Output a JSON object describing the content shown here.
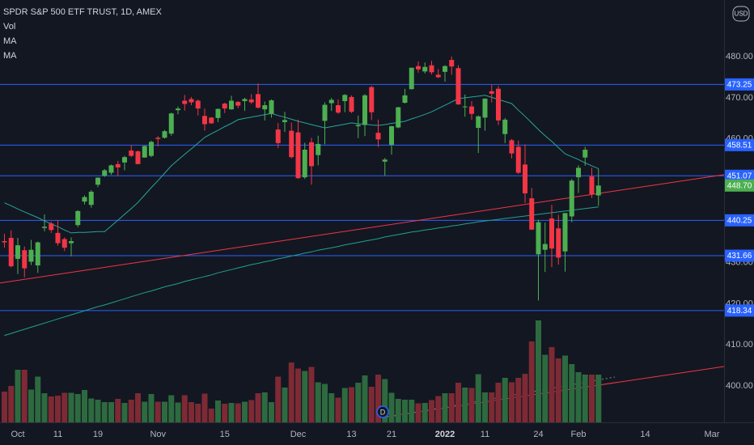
{
  "chart_data": {
    "type": "candlestick",
    "title": "SPDR S&P 500 ETF TRUST, 1D, AMEX",
    "indicators": [
      "Vol",
      "MA",
      "MA"
    ],
    "currency": "USD",
    "marker": "D",
    "categories": [
      null,
      null,
      "Oct",
      null,
      null,
      null,
      null,
      null,
      "11",
      null,
      null,
      null,
      null,
      null,
      "19",
      null,
      null,
      null,
      null,
      null,
      null,
      null,
      null,
      "Nov",
      null,
      null,
      null,
      null,
      null,
      null,
      null,
      null,
      null,
      "15",
      null,
      null,
      null,
      null,
      null,
      null,
      null,
      null,
      null,
      null,
      "Dec",
      null,
      null,
      null,
      null,
      null,
      null,
      null,
      "13",
      null,
      null,
      null,
      null,
      null,
      "21",
      null,
      null,
      null,
      null,
      null,
      null,
      null,
      "2022",
      null,
      null,
      null,
      null,
      null,
      "11",
      null,
      null,
      null,
      null,
      null,
      null,
      null,
      "24",
      null,
      null,
      null,
      null,
      null,
      "Feb",
      null,
      null,
      null,
      null,
      null,
      null,
      null,
      null,
      null,
      "14",
      null,
      null,
      null,
      null,
      null,
      null,
      null,
      null,
      null,
      "Mar"
    ],
    "open": [
      435.2,
      436.0,
      430.9,
      433.0,
      430.2,
      429.3,
      438.4,
      439.5,
      437.2,
      435.7,
      434.7,
      439.1,
      444.8,
      444.0,
      448.9,
      451.1,
      451.8,
      453.9,
      454.3,
      457.2,
      457.0,
      455.5,
      455.9,
      460.3,
      460.3,
      461.3,
      467.0,
      469.3,
      469.7,
      469.3,
      465.6,
      465.2,
      465.1,
      468.6,
      467.2,
      469.0,
      469.2,
      469.6,
      470.9,
      467.2,
      466.1,
      462.3,
      464.1,
      462.0,
      461.6,
      450.7,
      459.2,
      456.1,
      464.4,
      468.7,
      468.2,
      469.2,
      470.2,
      463.1,
      463.4,
      472.6,
      461.5,
      454.5,
      458.6,
      462.8,
      468.8,
      472.1,
      477.7,
      476.4,
      477.9,
      475.6,
      476.3,
      479.2,
      477.2,
      467.9,
      467.9,
      462.7,
      465.2,
      471.6,
      472.2,
      461.2,
      459.7,
      458.1,
      453.8,
      445.6,
      432.0,
      433.1,
      440.7,
      438.3,
      432.7,
      441.2,
      450.7,
      455.5,
      450.9,
      446.3,
      null,
      null,
      null,
      null,
      null,
      null,
      null,
      null,
      null,
      null,
      null,
      null,
      null,
      null,
      null,
      null,
      null
    ],
    "high": [
      437.0,
      437.8,
      436.0,
      433.9,
      435.5,
      435.1,
      441.7,
      439.9,
      440.3,
      436.1,
      436.1,
      442.7,
      446.3,
      447.6,
      450.7,
      452.7,
      453.8,
      454.7,
      455.9,
      458.5,
      457.2,
      458.4,
      459.6,
      460.7,
      462.2,
      466.4,
      467.9,
      470.7,
      470.2,
      469.6,
      467.4,
      465.3,
      467.4,
      468.8,
      470.5,
      469.2,
      470.0,
      470.9,
      473.5,
      469.1,
      469.6,
      463.9,
      466.6,
      464.0,
      464.7,
      459.1,
      460.3,
      460.8,
      468.9,
      470.0,
      469.6,
      470.9,
      470.6,
      465.7,
      470.9,
      472.9,
      464.7,
      455.4,
      463.2,
      467.8,
      472.2,
      477.3,
      478.8,
      478.6,
      479.0,
      477.0,
      477.9,
      480.0,
      477.9,
      470.8,
      469.2,
      465.7,
      469.9,
      473.2,
      472.9,
      465.1,
      460.0,
      459.6,
      458.7,
      448.1,
      440.4,
      439.7,
      444.0,
      441.6,
      442.0,
      450.3,
      453.6,
      458.1,
      453.0,
      452.8,
      null,
      null,
      null,
      null,
      null,
      null,
      null,
      null,
      null,
      null,
      null,
      null,
      null,
      null,
      null,
      null,
      null
    ],
    "low": [
      433.6,
      428.8,
      427.2,
      426.4,
      429.4,
      427.5,
      437.6,
      437.2,
      434.1,
      432.8,
      431.5,
      438.6,
      444.1,
      443.3,
      448.3,
      450.8,
      451.3,
      451.1,
      452.4,
      455.6,
      453.9,
      455.5,
      455.6,
      458.2,
      460.1,
      460.8,
      466.0,
      466.9,
      468.2,
      465.7,
      462.0,
      463.7,
      464.1,
      466.3,
      467.1,
      467.5,
      466.8,
      468.5,
      467.4,
      464.5,
      465.2,
      457.8,
      461.7,
      455.3,
      450.3,
      450.3,
      448.9,
      453.6,
      458.7,
      466.8,
      466.1,
      466.5,
      466.3,
      460.2,
      460.7,
      464.6,
      458.1,
      451.1,
      456.2,
      462.6,
      468.6,
      472.0,
      476.1,
      475.9,
      475.7,
      474.8,
      473.9,
      475.6,
      468.3,
      465.4,
      464.7,
      456.6,
      462.0,
      468.9,
      463.4,
      459.0,
      455.3,
      451.5,
      444.5,
      437.9,
      420.8,
      427.7,
      428.9,
      429.5,
      427.8,
      439.8,
      446.9,
      453.5,
      445.7,
      443.8,
      null,
      null,
      null,
      null,
      null,
      null,
      null,
      null,
      null,
      null,
      null,
      null,
      null,
      null,
      null,
      null,
      null
    ],
    "close": [
      434.9,
      429.1,
      434.2,
      428.6,
      433.1,
      434.9,
      438.7,
      437.9,
      434.7,
      433.6,
      435.2,
      442.5,
      445.9,
      447.2,
      450.6,
      452.4,
      453.6,
      453.1,
      455.6,
      455.9,
      453.9,
      458.3,
      459.3,
      460.0,
      461.9,
      466.2,
      467.4,
      468.5,
      468.9,
      467.4,
      463.6,
      463.8,
      467.3,
      467.4,
      469.3,
      468.1,
      469.7,
      468.9,
      467.6,
      468.2,
      469.4,
      459.0,
      464.6,
      455.6,
      450.5,
      457.4,
      453.4,
      458.8,
      468.3,
      469.5,
      466.4,
      470.7,
      466.6,
      463.4,
      470.6,
      466.5,
      459.9,
      455.0,
      463.1,
      467.7,
      470.6,
      477.3,
      476.9,
      477.5,
      476.2,
      475.0,
      477.7,
      477.6,
      468.4,
      467.9,
      466.1,
      465.5,
      469.8,
      471.0,
      464.5,
      464.7,
      456.5,
      451.8,
      446.8,
      438.0,
      439.8,
      434.5,
      433.4,
      431.2,
      442.0,
      449.9,
      453.0,
      457.4,
      446.6,
      448.7,
      null,
      null,
      null,
      null,
      null,
      null,
      null,
      null,
      null,
      null,
      null,
      null,
      null,
      null,
      null,
      null,
      null
    ],
    "volume": [
      76,
      90,
      130,
      130,
      81,
      113,
      72,
      64,
      66,
      73,
      73,
      70,
      80,
      59,
      56,
      50,
      50,
      58,
      48,
      56,
      72,
      51,
      70,
      51,
      51,
      67,
      49,
      67,
      50,
      46,
      71,
      34,
      54,
      46,
      48,
      47,
      51,
      55,
      72,
      74,
      50,
      113,
      86,
      148,
      133,
      127,
      137,
      99,
      95,
      72,
      61,
      85,
      87,
      98,
      116,
      88,
      118,
      107,
      73,
      58,
      56,
      56,
      47,
      48,
      55,
      65,
      72,
      72,
      98,
      86,
      85,
      119,
      74,
      74,
      98,
      110,
      99,
      110,
      120,
      200,
      252,
      167,
      186,
      158,
      165,
      144,
      124,
      118,
      118,
      118,
      null,
      null,
      null,
      null,
      null,
      null,
      null,
      null,
      null,
      null,
      null,
      null,
      null,
      null,
      null,
      null,
      null
    ],
    "ma": [
      {
        "color": "#26a69a",
        "values": [
          444.5,
          443.8,
          443.0,
          442.3,
          441.6,
          440.9,
          440.1,
          439.4,
          438.7,
          437.9,
          437.2,
          437.3,
          437.3,
          437.4,
          437.5,
          437.5,
          438.9,
          440.3,
          441.7,
          443.1,
          444.6,
          446.4,
          448.2,
          449.9,
          451.7,
          453.5,
          454.9,
          456.3,
          457.6,
          459.0,
          460.4,
          461.3,
          462.1,
          463.0,
          463.8,
          464.7,
          465.0,
          465.3,
          465.6,
          465.9,
          466.2,
          465.7,
          465.3,
          464.8,
          464.3,
          463.9,
          463.5,
          463.1,
          462.7,
          463.0,
          463.3,
          463.6,
          463.9,
          463.7,
          463.6,
          463.4,
          463.3,
          463.5,
          463.8,
          464.0,
          464.3,
          464.9,
          465.4,
          466.0,
          466.6,
          467.4,
          468.2,
          469.0,
          469.8,
          470.0,
          470.2,
          470.4,
          470.6,
          470.1,
          469.6,
          469.1,
          468.6,
          467.0,
          465.5,
          463.9,
          462.3,
          460.8,
          459.4,
          457.9,
          456.4,
          455.7,
          455.0,
          454.2,
          453.5,
          452.8,
          null,
          null,
          null,
          null,
          null,
          null,
          null,
          null,
          null,
          null,
          null,
          null,
          null,
          null,
          null,
          null,
          null
        ]
      },
      {
        "color": "#1fa38e",
        "values": [
          412.3,
          412.8,
          413.3,
          413.8,
          414.3,
          414.8,
          415.3,
          415.8,
          416.3,
          416.8,
          417.3,
          417.8,
          418.3,
          418.8,
          419.3,
          419.7,
          420.2,
          420.7,
          421.2,
          421.7,
          422.2,
          422.7,
          423.1,
          423.6,
          424.1,
          424.5,
          424.9,
          425.4,
          425.8,
          426.2,
          426.6,
          427.0,
          427.5,
          427.9,
          428.3,
          428.7,
          429.1,
          429.5,
          429.8,
          430.2,
          430.5,
          430.9,
          431.2,
          431.6,
          431.9,
          432.3,
          432.6,
          433.0,
          433.3,
          433.6,
          433.9,
          434.3,
          434.6,
          434.9,
          435.2,
          435.5,
          435.8,
          436.2,
          436.5,
          436.8,
          437.1,
          437.4,
          437.6,
          437.9,
          438.1,
          438.4,
          438.6,
          438.9,
          439.1,
          439.4,
          439.6,
          439.9,
          440.1,
          440.3,
          440.5,
          440.7,
          440.9,
          441.1,
          441.3,
          441.5,
          441.7,
          441.9,
          442.1,
          442.3,
          442.5,
          442.7,
          442.9,
          443.1,
          443.3,
          443.5,
          null,
          null,
          null,
          null,
          null,
          null,
          null,
          null,
          null,
          null,
          null,
          null,
          null,
          null,
          null,
          null,
          null
        ]
      }
    ],
    "trendline": {
      "color": "#f23645",
      "values": [
        425.2,
        450.9
      ]
    },
    "levels": {
      "color": "#2962ff",
      "values": [
        473.25,
        458.51,
        451.07,
        440.25,
        431.66,
        418.34
      ]
    },
    "last_price_label": "448.70",
    "up_color": "#4caf50",
    "down_color": "#f23645",
    "volume_up_color": "#2d6a3f",
    "volume_down_color": "#7d2a34",
    "ylim": [
      391.2,
      493.75
    ],
    "vlim": [
      0,
      1044
    ],
    "yticks": [
      {
        "value": 480,
        "label": "480.00"
      },
      {
        "value": 470,
        "label": "470.00"
      },
      {
        "value": 460,
        "label": "460.00"
      },
      {
        "value": 430,
        "label": "430.00"
      },
      {
        "value": 420,
        "label": "420.00"
      },
      {
        "value": 410,
        "label": "410.00"
      },
      {
        "value": 400,
        "label": "400.00"
      }
    ],
    "grid": false
  }
}
